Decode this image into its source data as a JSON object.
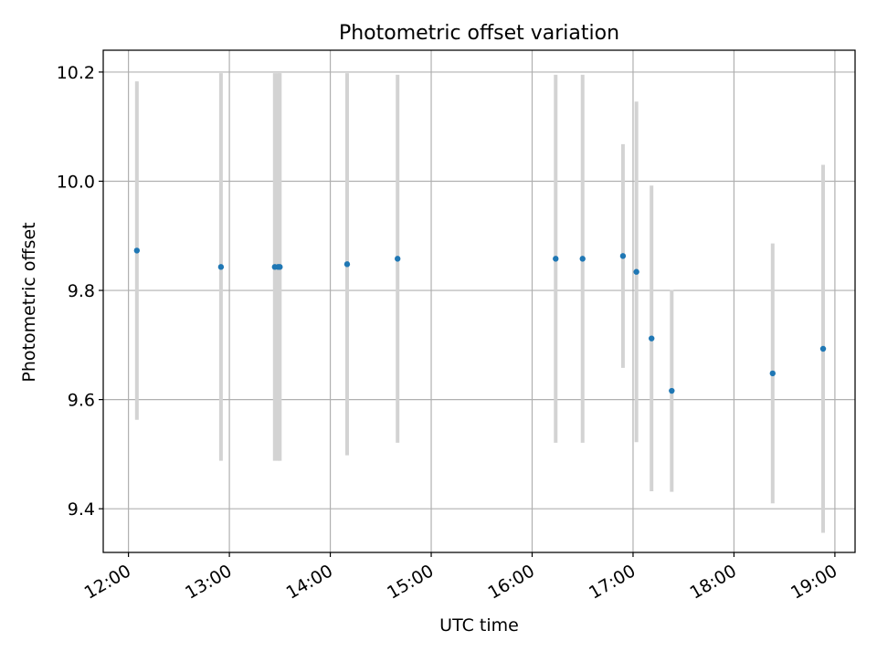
{
  "chart_data": {
    "type": "scatter",
    "title": "Photometric offset variation",
    "xlabel": "UTC time",
    "ylabel": "Photometric offset",
    "x_ticks": [
      "12:00",
      "13:00",
      "14:00",
      "15:00",
      "16:00",
      "17:00",
      "18:00",
      "19:00"
    ],
    "y_ticks": [
      "9.4",
      "9.6",
      "9.8",
      "10.0",
      "10.2"
    ],
    "xlim": [
      "11:45",
      "19:12"
    ],
    "ylim": [
      9.32,
      10.24
    ],
    "grid": true,
    "colors": {
      "points": "#1f77b4",
      "error_bars": "#d3d3d3",
      "grid": "#b0b0b0"
    },
    "series": [
      {
        "points": [
          {
            "x": "12:05",
            "y": 9.873,
            "err": 0.31
          },
          {
            "x": "12:55",
            "y": 9.843,
            "err": 0.355
          },
          {
            "x": "13:27",
            "y": 9.843,
            "err": 0.355
          },
          {
            "x": "13:29",
            "y": 9.843,
            "err": 0.355
          },
          {
            "x": "13:30",
            "y": 9.843,
            "err": 0.355
          },
          {
            "x": "14:10",
            "y": 9.848,
            "err": 0.35
          },
          {
            "x": "14:40",
            "y": 9.858,
            "err": 0.337
          },
          {
            "x": "16:14",
            "y": 9.858,
            "err": 0.337
          },
          {
            "x": "16:30",
            "y": 9.858,
            "err": 0.337
          },
          {
            "x": "16:54",
            "y": 9.863,
            "err": 0.205
          },
          {
            "x": "17:02",
            "y": 9.834,
            "err": 0.312
          },
          {
            "x": "17:11",
            "y": 9.712,
            "err": 0.28
          },
          {
            "x": "17:23",
            "y": 9.616,
            "err": 0.185
          },
          {
            "x": "18:23",
            "y": 9.648,
            "err": 0.238
          },
          {
            "x": "18:53",
            "y": 9.693,
            "err": 0.337
          }
        ]
      }
    ]
  }
}
